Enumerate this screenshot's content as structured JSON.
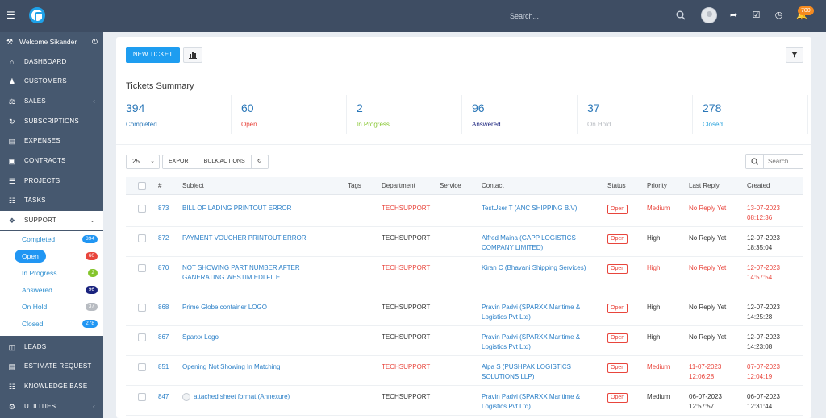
{
  "topbar": {
    "search_placeholder": "Search...",
    "notification_count": "700",
    "icons": [
      "menu-icon",
      "search-icon",
      "share-icon",
      "checkbox-icon",
      "clock-icon",
      "bell-icon"
    ]
  },
  "sidebar": {
    "welcome": "Welcome Sikander",
    "items": [
      {
        "label": "DASHBOARD",
        "icon": "home-icon"
      },
      {
        "label": "CUSTOMERS",
        "icon": "user-icon"
      },
      {
        "label": "SALES",
        "icon": "scale-icon"
      },
      {
        "label": "SUBSCRIPTIONS",
        "icon": "refresh-icon"
      },
      {
        "label": "EXPENSES",
        "icon": "file-icon"
      },
      {
        "label": "CONTRACTS",
        "icon": "contract-icon"
      },
      {
        "label": "PROJECTS",
        "icon": "list-icon"
      },
      {
        "label": "TASKS",
        "icon": "tasks-icon"
      },
      {
        "label": "SUPPORT",
        "icon": "ticket-icon"
      },
      {
        "label": "LEADS",
        "icon": "leads-icon"
      },
      {
        "label": "ESTIMATE REQUEST",
        "icon": "estimate-icon"
      },
      {
        "label": "KNOWLEDGE BASE",
        "icon": "book-icon"
      },
      {
        "label": "UTILITIES",
        "icon": "gears-icon"
      }
    ],
    "support_sub": [
      {
        "label": "Completed",
        "count": "394",
        "color": "#2196f3"
      },
      {
        "label": "Open",
        "count": "60",
        "color": "#e8453c"
      },
      {
        "label": "In Progress",
        "count": "2",
        "color": "#84c52c"
      },
      {
        "label": "Answered",
        "count": "96",
        "color": "#1a237e"
      },
      {
        "label": "On Hold",
        "count": "37",
        "color": "#b8bcc2"
      },
      {
        "label": "Closed",
        "count": "278",
        "color": "#2196f3"
      }
    ]
  },
  "toolbar": {
    "new_ticket": "NEW TICKET"
  },
  "summary": {
    "title": "Tickets Summary",
    "items": [
      {
        "count": "394",
        "label": "Completed",
        "color": "#2a77b8"
      },
      {
        "count": "60",
        "label": "Open",
        "color": "#e8453c"
      },
      {
        "count": "2",
        "label": "In Progress",
        "color": "#84c52c"
      },
      {
        "count": "96",
        "label": "Answered",
        "color": "#1a237e"
      },
      {
        "count": "37",
        "label": "On Hold",
        "color": "#b8bcc2"
      },
      {
        "count": "278",
        "label": "Closed",
        "color": "#2aa3dc"
      }
    ]
  },
  "table_tools": {
    "page_size": "25",
    "export": "EXPORT",
    "bulk_actions": "BULK ACTIONS",
    "search_placeholder": "Search..."
  },
  "table": {
    "columns": [
      "#",
      "Subject",
      "Tags",
      "Department",
      "Service",
      "Contact",
      "Status",
      "Priority",
      "Last Reply",
      "Created"
    ],
    "rows": [
      {
        "id": "873",
        "subject": [
          "BILL OF LADING PRINTOUT ERROR"
        ],
        "department": "TECHSUPPORT",
        "contact": [
          "TestUser T (ANC SHIPPING B.V)"
        ],
        "status": "Open",
        "priority": "Medium",
        "last_reply": [
          "No Reply Yet"
        ],
        "created": [
          "13-07-2023",
          "08:12:36"
        ],
        "highlight": true
      },
      {
        "id": "872",
        "subject": [
          "PAYMENT VOUCHER PRINTOUT ERROR"
        ],
        "department": "TECHSUPPORT",
        "contact": [
          "Alfred Maina (GAPP LOGISTICS",
          "COMPANY LIMITED)"
        ],
        "status": "Open",
        "priority": "High",
        "last_reply": [
          "No Reply Yet"
        ],
        "created": [
          "12-07-2023",
          "18:35:04"
        ],
        "highlight": false
      },
      {
        "id": "870",
        "subject": [
          "NOT SHOWING PART NUMBER AFTER",
          "GANERATING WESTIM EDI FILE"
        ],
        "department": "TECHSUPPORT",
        "contact": [
          "Kiran C (Bhavani Shipping Services)"
        ],
        "status": "Open",
        "priority": "High",
        "last_reply": [
          "No Reply Yet"
        ],
        "created": [
          "12-07-2023",
          "14:57:54"
        ],
        "highlight": true
      },
      {
        "id": "868",
        "subject": [
          "Prime Globe container LOGO"
        ],
        "department": "TECHSUPPORT",
        "contact": [
          "Pravin Padvi (SPARXX Maritime &",
          "Logistics Pvt Ltd)"
        ],
        "status": "Open",
        "priority": "High",
        "last_reply": [
          "No Reply Yet"
        ],
        "created": [
          "12-07-2023",
          "14:25:28"
        ],
        "highlight": false
      },
      {
        "id": "867",
        "subject": [
          "Sparxx Logo"
        ],
        "department": "TECHSUPPORT",
        "contact": [
          "Pravin Padvi (SPARXX Maritime &",
          "Logistics Pvt Ltd)"
        ],
        "status": "Open",
        "priority": "High",
        "last_reply": [
          "No Reply Yet"
        ],
        "created": [
          "12-07-2023",
          "14:23:08"
        ],
        "highlight": false
      },
      {
        "id": "851",
        "subject": [
          "Opening Not Showing In Matching"
        ],
        "department": "TECHSUPPORT",
        "contact": [
          "Alpa S (PUSHPAK LOGISTICS",
          "SOLUTIONS LLP)"
        ],
        "status": "Open",
        "priority": "Medium",
        "last_reply": [
          "11-07-2023",
          "12:06:28"
        ],
        "created": [
          "07-07-2023",
          "12:04:19"
        ],
        "highlight": true
      },
      {
        "id": "847",
        "subject": [
          "attached sheet format (Annexure)"
        ],
        "department": "TECHSUPPORT",
        "contact": [
          "Pravin Padvi (SPARXX Maritime &",
          "Logistics Pvt Ltd)"
        ],
        "status": "Open",
        "priority": "Medium",
        "last_reply": [
          "06-07-2023",
          "12:57:57"
        ],
        "created": [
          "06-07-2023",
          "12:31:44"
        ],
        "highlight": false
      }
    ]
  }
}
